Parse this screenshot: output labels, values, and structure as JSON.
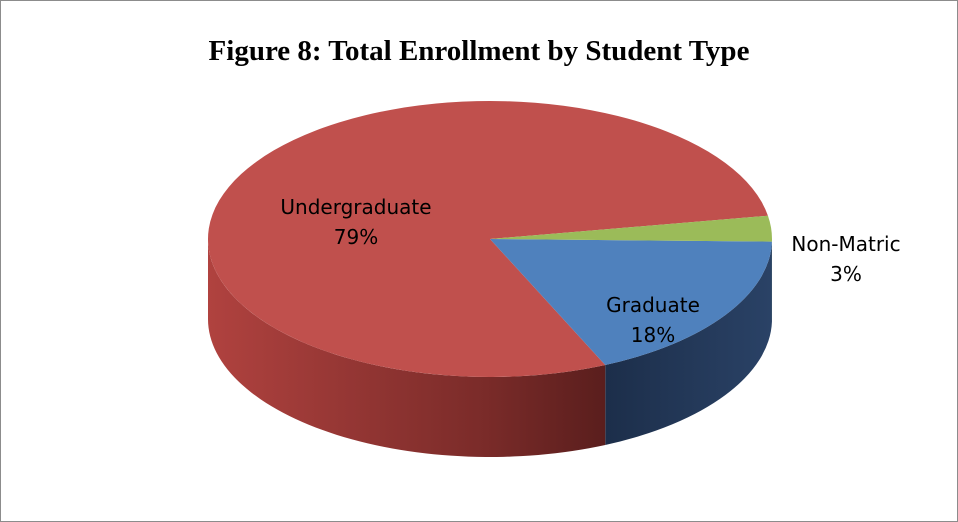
{
  "chart_data": {
    "type": "pie",
    "title": "Figure 8: Total Enrollment by Student Type",
    "slices": [
      {
        "label": "Undergraduate",
        "value": 79,
        "display": "79%",
        "color": "#c0504d"
      },
      {
        "label": "Graduate",
        "value": 18,
        "display": "18%",
        "color": "#4f81bd"
      },
      {
        "label": "Non-Matric",
        "value": 3,
        "display": "3%",
        "color": "#9bbb59"
      }
    ],
    "legend": "none",
    "style": "3d"
  }
}
